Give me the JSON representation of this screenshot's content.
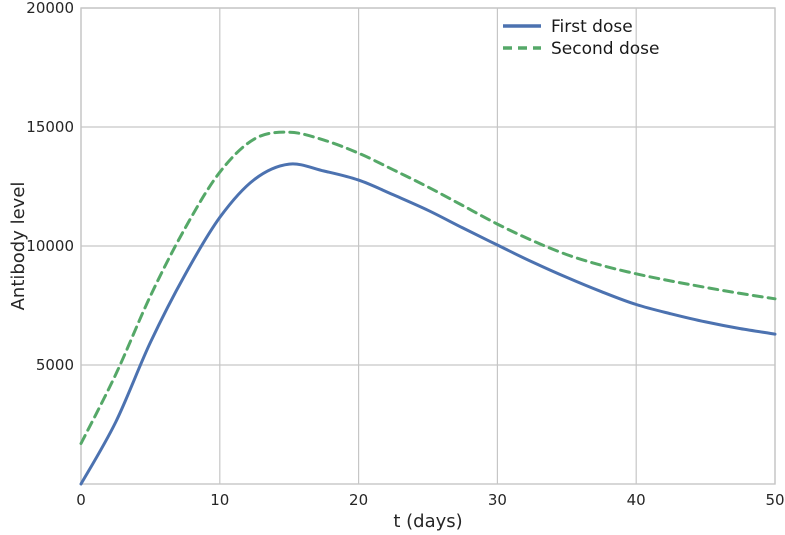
{
  "chart_data": {
    "type": "line",
    "title": "",
    "xlabel": "t (days)",
    "ylabel": "Antibody level",
    "xlim": [
      0,
      50
    ],
    "ylim": [
      0,
      20000
    ],
    "xticks": [
      0,
      10,
      20,
      30,
      40,
      50
    ],
    "yticks": [
      5000,
      10000,
      15000,
      20000
    ],
    "grid": true,
    "legend_position": "upper right",
    "legend_frame": false,
    "x": [
      0,
      2.5,
      5,
      7.5,
      10,
      12.5,
      15,
      17.5,
      20,
      22.5,
      25,
      27.5,
      30,
      32.5,
      35,
      37.5,
      40,
      42.5,
      45,
      47.5,
      50
    ],
    "series": [
      {
        "name": "First dose",
        "color": "#4c72b0",
        "line_style": "solid",
        "values": [
          0,
          2600,
          5950,
          8800,
          11200,
          12800,
          13440,
          13150,
          12770,
          12150,
          11500,
          10760,
          10040,
          9330,
          8680,
          8080,
          7540,
          7150,
          6810,
          6530,
          6300
        ]
      },
      {
        "name": "Second dose",
        "color": "#55a868",
        "line_style": "dashed",
        "values": [
          1700,
          4600,
          7900,
          10750,
          13100,
          14500,
          14780,
          14450,
          13900,
          13200,
          12480,
          11700,
          10920,
          10230,
          9640,
          9190,
          8830,
          8530,
          8260,
          8010,
          7780
        ]
      }
    ],
    "colors": {
      "background": "#ffffff",
      "grid": "#c6c6c6",
      "spine": "#c6c6c6",
      "text": "#262626"
    }
  }
}
